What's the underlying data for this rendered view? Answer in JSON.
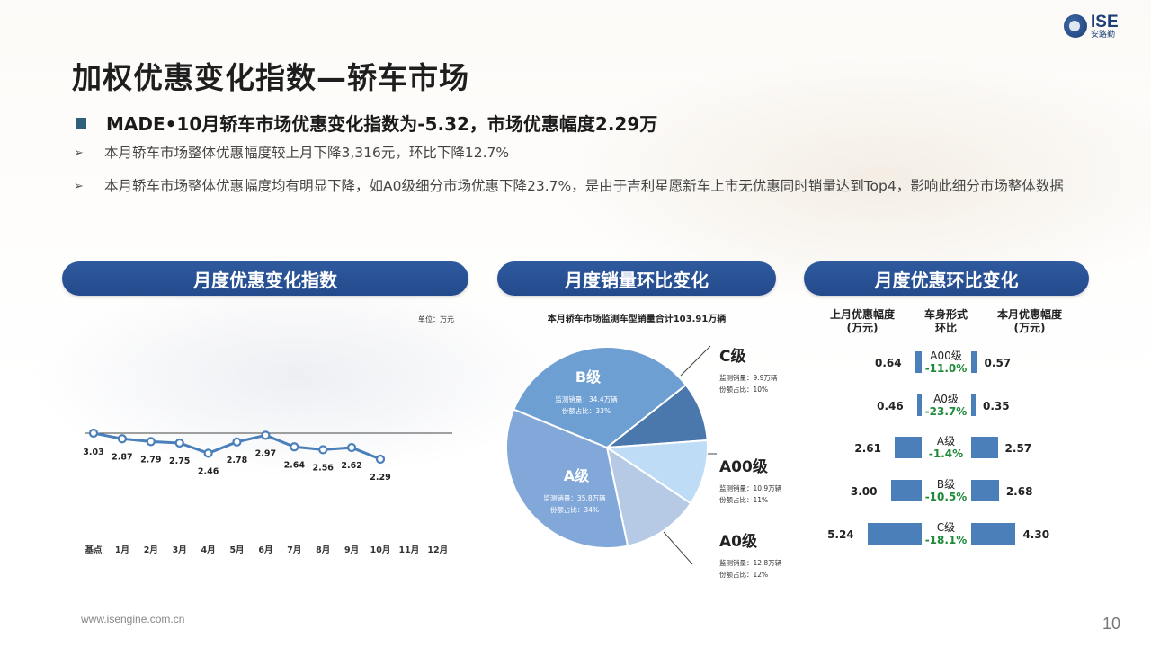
{
  "brand": {
    "logo_en": "ISE",
    "logo_cn": "安路勤"
  },
  "title": "加权优惠变化指数—轿车市场",
  "headline": "MADE•10月轿车市场优惠变化指数为-5.32，市场优惠幅度2.29万",
  "bullets": [
    "本月轿车市场整体优惠幅度较上月下降3,316元，环比下降12.7%",
    "本月轿车市场整体优惠幅度均有明显下降，如A0级细分市场优惠下降23.7%，是由于吉利星愿新车上市无优惠同时销量达到Top4，影响此细分市场整体数据"
  ],
  "panels": {
    "left_title": "月度优惠变化指数",
    "middle_title": "月度销量环比变化",
    "right_title": "月度优惠环比变化"
  },
  "line_chart": {
    "unit_label": "单位：万元"
  },
  "pie_caption": "本月轿车市场监测车型销量合计103.91万辆",
  "pie_labels": {
    "b": {
      "name": "B级",
      "vol": "监测销量：34.4万辆",
      "share": "份额占比：33%"
    },
    "a": {
      "name": "A级",
      "vol": "监测销量：35.8万辆",
      "share": "份额占比：34%"
    },
    "c": {
      "name": "C级",
      "vol": "监测销量：9.9万辆",
      "share": "份额占比：10%"
    },
    "a00": {
      "name": "A00级",
      "vol": "监测销量：10.9万辆",
      "share": "份额占比：11%"
    },
    "a0": {
      "name": "A0级",
      "vol": "监测销量：12.8万辆",
      "share": "份额占比：12%"
    }
  },
  "comparison": {
    "header_prev": [
      "上月优惠幅度",
      "(万元)"
    ],
    "header_seg": [
      "车身形式",
      "环比"
    ],
    "header_cur": [
      "本月优惠幅度",
      "(万元)"
    ],
    "rows": [
      {
        "seg": "A00级",
        "chg": "-11.0%",
        "prev": "0.64",
        "cur": "0.57",
        "prev_num": 0.64,
        "cur_num": 0.57
      },
      {
        "seg": "A0级",
        "chg": "-23.7%",
        "prev": "0.46",
        "cur": "0.35",
        "prev_num": 0.46,
        "cur_num": 0.35
      },
      {
        "seg": "A级",
        "chg": "-1.4%",
        "prev": "2.61",
        "cur": "2.57",
        "prev_num": 2.61,
        "cur_num": 2.57
      },
      {
        "seg": "B级",
        "chg": "-10.5%",
        "prev": "3.00",
        "cur": "2.68",
        "prev_num": 3.0,
        "cur_num": 2.68
      },
      {
        "seg": "C级",
        "chg": "-18.1%",
        "prev": "5.24",
        "cur": "4.30",
        "prev_num": 5.24,
        "cur_num": 4.3
      }
    ]
  },
  "chart_data": [
    {
      "type": "line",
      "title": "月度优惠变化指数",
      "unit": "单位：万元",
      "categories": [
        "基点",
        "1月",
        "2月",
        "3月",
        "4月",
        "5月",
        "6月",
        "7月",
        "8月",
        "9月",
        "10月",
        "11月",
        "12月"
      ],
      "series": [
        {
          "values": [
            3.03,
            2.87,
            2.79,
            2.75,
            2.46,
            2.78,
            2.97,
            2.64,
            2.56,
            2.62,
            2.29,
            null,
            null
          ]
        }
      ],
      "color": "#4a7fba"
    },
    {
      "type": "pie",
      "title": "月度销量环比变化",
      "caption": "本月轿车市场监测车型销量合计103.91万辆",
      "categories": [
        "C级",
        "A00级",
        "A0级",
        "A级",
        "B级"
      ],
      "values": [
        9.9,
        10.9,
        12.8,
        35.8,
        34.4
      ],
      "shares": [
        10,
        11,
        12,
        34,
        33
      ],
      "colors": [
        "#4a78ad",
        "#bfdcf7",
        "#b6cae5",
        "#82a8da",
        "#6e9fd3"
      ]
    }
  ],
  "footer": {
    "url": "www.isengine.com.cn",
    "page": "10"
  }
}
